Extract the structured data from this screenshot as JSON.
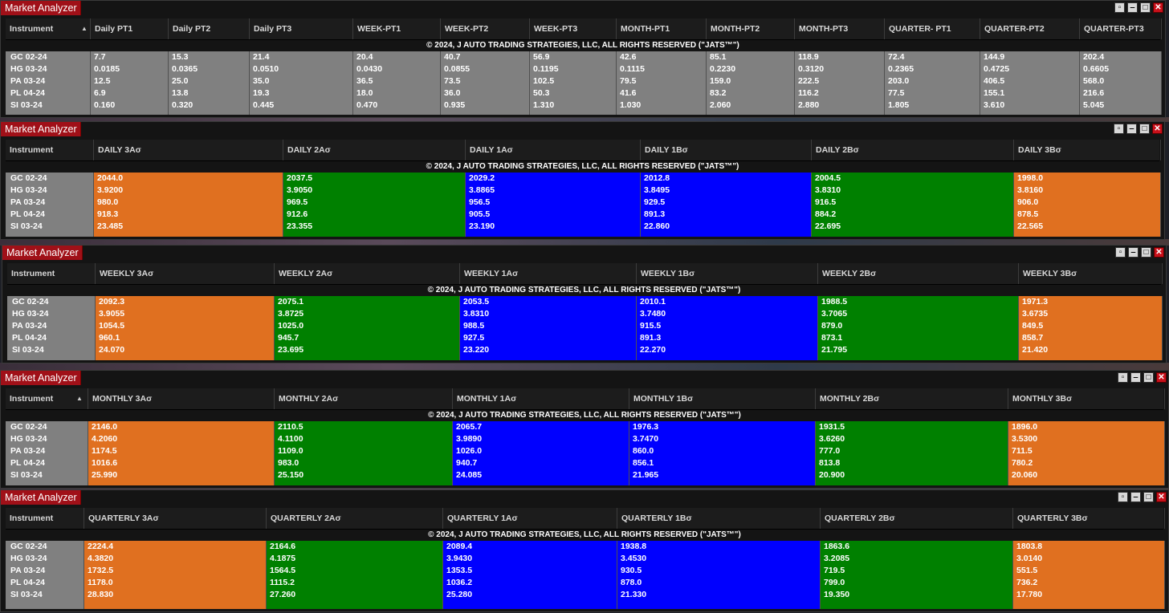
{
  "instruments": [
    "GC 02-24",
    "HG 03-24",
    "PA 03-24",
    "PL 04-24",
    "SI 03-24"
  ],
  "copyright": "© 2024, J AUTO TRADING STRATEGIES, LLC, ALL RIGHTS RESERVED (\"JATS™\")",
  "colors": {
    "orange": "#e07020",
    "green": "#008000",
    "blue": "#0000ff",
    "gray": "#808080"
  },
  "windows": [
    {
      "title": "Market Analyzer",
      "instrument_header": "Instrument",
      "columns": [
        {
          "label": "Daily PT1",
          "values": [
            "7.7",
            "0.0185",
            "12.5",
            "6.9",
            "0.160"
          ]
        },
        {
          "label": "Daily PT2",
          "values": [
            "15.3",
            "0.0365",
            "25.0",
            "13.8",
            "0.320"
          ]
        },
        {
          "label": "Daily PT3",
          "values": [
            "21.4",
            "0.0510",
            "35.0",
            "19.3",
            "0.445"
          ]
        },
        {
          "label": "WEEK-PT1",
          "values": [
            "20.4",
            "0.0430",
            "36.5",
            "18.0",
            "0.470"
          ]
        },
        {
          "label": "WEEK-PT2",
          "values": [
            "40.7",
            "0.0855",
            "73.5",
            "36.0",
            "0.935"
          ]
        },
        {
          "label": "WEEK-PT3",
          "values": [
            "56.9",
            "0.1195",
            "102.5",
            "50.3",
            "1.310"
          ]
        },
        {
          "label": "MONTH-PT1",
          "values": [
            "42.6",
            "0.1115",
            "79.5",
            "41.6",
            "1.030"
          ]
        },
        {
          "label": "MONTH-PT2",
          "values": [
            "85.1",
            "0.2230",
            "159.0",
            "83.2",
            "2.060"
          ]
        },
        {
          "label": "MONTH-PT3",
          "values": [
            "118.9",
            "0.3120",
            "222.5",
            "116.2",
            "2.880"
          ]
        },
        {
          "label": "QUARTER- PT1",
          "values": [
            "72.4",
            "0.2365",
            "203.0",
            "77.5",
            "1.805"
          ]
        },
        {
          "label": "QUARTER-PT2",
          "values": [
            "144.9",
            "0.4725",
            "406.5",
            "155.1",
            "3.610"
          ]
        },
        {
          "label": "QUARTER-PT3",
          "values": [
            "202.4",
            "0.6605",
            "568.0",
            "216.6",
            "5.045"
          ]
        }
      ]
    },
    {
      "title": "Market Analyzer",
      "instrument_header": "Instrument",
      "columns": [
        {
          "label": "DAILY 3Aσ",
          "color": "orange",
          "values": [
            "2044.0",
            "3.9200",
            "980.0",
            "918.3",
            "23.485"
          ]
        },
        {
          "label": "DAILY 2Aσ",
          "color": "green",
          "values": [
            "2037.5",
            "3.9050",
            "969.5",
            "912.6",
            "23.355"
          ]
        },
        {
          "label": "DAILY 1Aσ",
          "color": "blue",
          "values": [
            "2029.2",
            "3.8865",
            "956.5",
            "905.5",
            "23.190"
          ]
        },
        {
          "label": "DAILY 1Bσ",
          "color": "blue",
          "values": [
            "2012.8",
            "3.8495",
            "929.5",
            "891.3",
            "22.860"
          ]
        },
        {
          "label": "DAILY 2Bσ",
          "color": "green",
          "values": [
            "2004.5",
            "3.8310",
            "916.5",
            "884.2",
            "22.695"
          ]
        },
        {
          "label": "DAILY 3Bσ",
          "color": "orange",
          "values": [
            "1998.0",
            "3.8160",
            "906.0",
            "878.5",
            "22.565"
          ]
        }
      ]
    },
    {
      "title": "Market Analyzer",
      "instrument_header": "Instrument",
      "columns": [
        {
          "label": "WEEKLY 3Aσ",
          "color": "orange",
          "values": [
            "2092.3",
            "3.9055",
            "1054.5",
            "960.1",
            "24.070"
          ]
        },
        {
          "label": "WEEKLY 2Aσ",
          "color": "green",
          "values": [
            "2075.1",
            "3.8725",
            "1025.0",
            "945.7",
            "23.695"
          ]
        },
        {
          "label": "WEEKLY 1Aσ",
          "color": "blue",
          "values": [
            "2053.5",
            "3.8310",
            "988.5",
            "927.5",
            "23.220"
          ]
        },
        {
          "label": "WEEKLY 1Bσ",
          "color": "blue",
          "values": [
            "2010.1",
            "3.7480",
            "915.5",
            "891.3",
            "22.270"
          ]
        },
        {
          "label": "WEEKLY 2Bσ",
          "color": "green",
          "values": [
            "1988.5",
            "3.7065",
            "879.0",
            "873.1",
            "21.795"
          ]
        },
        {
          "label": "WEEKLY 3Bσ",
          "color": "orange",
          "values": [
            "1971.3",
            "3.6735",
            "849.5",
            "858.7",
            "21.420"
          ]
        }
      ]
    },
    {
      "title": "Market Analyzer",
      "instrument_header": "Instrument",
      "columns": [
        {
          "label": "MONTHLY 3Aσ",
          "color": "orange",
          "values": [
            "2146.0",
            "4.2060",
            "1174.5",
            "1016.6",
            "25.990"
          ]
        },
        {
          "label": "MONTHLY 2Aσ",
          "color": "green",
          "values": [
            "2110.5",
            "4.1100",
            "1109.0",
            "983.0",
            "25.150"
          ]
        },
        {
          "label": "MONTHLY 1Aσ",
          "color": "blue",
          "values": [
            "2065.7",
            "3.9890",
            "1026.0",
            "940.7",
            "24.085"
          ]
        },
        {
          "label": "MONTHLY 1Bσ",
          "color": "blue",
          "values": [
            "1976.3",
            "3.7470",
            "860.0",
            "856.1",
            "21.965"
          ]
        },
        {
          "label": "MONTHLY 2Bσ",
          "color": "green",
          "values": [
            "1931.5",
            "3.6260",
            "777.0",
            "813.8",
            "20.900"
          ]
        },
        {
          "label": "MONTHLY 3Bσ",
          "color": "orange",
          "values": [
            "1896.0",
            "3.5300",
            "711.5",
            "780.2",
            "20.060"
          ]
        }
      ]
    },
    {
      "title": "Market Analyzer",
      "instrument_header": "Instrument",
      "columns": [
        {
          "label": "QUARTERLY 3Aσ",
          "color": "orange",
          "values": [
            "2224.4",
            "4.3820",
            "1732.5",
            "1178.0",
            "28.830"
          ]
        },
        {
          "label": "QUARTERLY 2Aσ",
          "color": "green",
          "values": [
            "2164.6",
            "4.1875",
            "1564.5",
            "1115.2",
            "27.260"
          ]
        },
        {
          "label": "QUARTERLY 1Aσ",
          "color": "blue",
          "values": [
            "2089.4",
            "3.9430",
            "1353.5",
            "1036.2",
            "25.280"
          ]
        },
        {
          "label": "QUARTERLY 1Bσ",
          "color": "blue",
          "values": [
            "1938.8",
            "3.4530",
            "930.5",
            "878.0",
            "21.330"
          ]
        },
        {
          "label": "QUARTERLY 2Bσ",
          "color": "green",
          "values": [
            "1863.6",
            "3.2085",
            "719.5",
            "799.0",
            "19.350"
          ]
        },
        {
          "label": "QUARTERLY 3Bσ",
          "color": "orange",
          "values": [
            "1803.8",
            "3.0140",
            "551.5",
            "736.2",
            "17.780"
          ]
        }
      ]
    }
  ]
}
